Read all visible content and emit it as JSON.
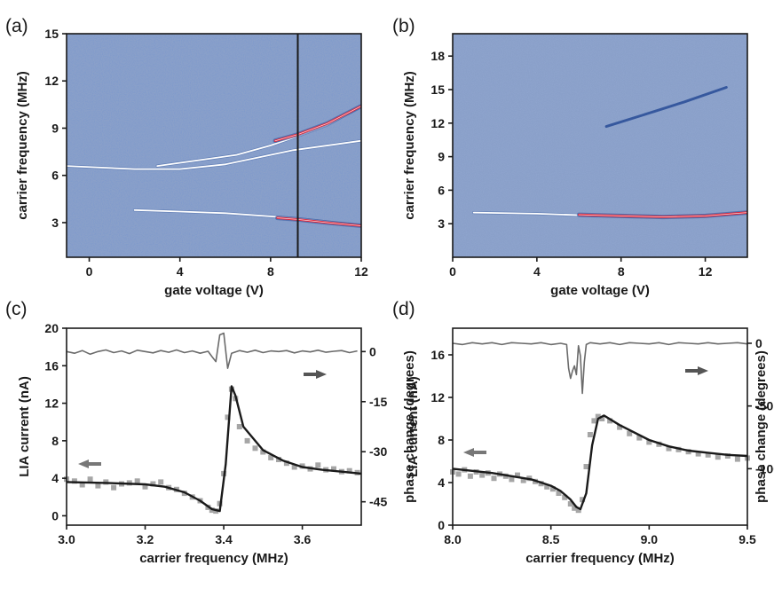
{
  "panels": {
    "a": {
      "letter": "(a)"
    },
    "b": {
      "letter": "(b)"
    },
    "c": {
      "letter": "(c)"
    },
    "d": {
      "letter": "(d)"
    }
  },
  "colors": {
    "map_background": "#8aa0c9",
    "map_dark": "#36589e",
    "map_light": "#ffffff",
    "map_red": "#e0263a",
    "data_points": "#a6a6a6",
    "fit_line": "#1a1a1a",
    "phase_line": "#6b6b6b"
  },
  "chart_data": [
    {
      "id": "a",
      "type": "heatmap",
      "xlabel": "gate voltage (V)",
      "ylabel": "carrier frequency (MHz)",
      "xlim": [
        -1,
        12
      ],
      "ylim": [
        0.8,
        15
      ],
      "xticks": [
        0,
        4,
        8,
        12
      ],
      "yticks": [
        3,
        6,
        9,
        12,
        15
      ],
      "colormap": "blue-white-red",
      "marker_line_x": 9.2,
      "features": [
        {
          "style": "light",
          "x": [
            -1,
            2,
            4,
            6,
            8,
            9,
            12
          ],
          "y": [
            6.6,
            6.4,
            6.4,
            6.7,
            7.3,
            7.6,
            8.2
          ]
        },
        {
          "style": "light",
          "x": [
            3,
            5,
            6.5,
            8,
            9.2,
            10.5,
            12
          ],
          "y": [
            6.6,
            7.0,
            7.3,
            7.9,
            8.5,
            9.2,
            10.4
          ]
        },
        {
          "style": "red",
          "x": [
            8.2,
            9.2,
            10.5,
            12
          ],
          "y": [
            8.2,
            8.6,
            9.3,
            10.4
          ]
        },
        {
          "style": "light",
          "x": [
            2,
            4,
            6,
            8,
            9.2,
            10.5,
            12
          ],
          "y": [
            3.8,
            3.7,
            3.6,
            3.4,
            3.25,
            3.05,
            2.8
          ]
        },
        {
          "style": "red",
          "x": [
            8.3,
            9.2,
            10.5,
            12
          ],
          "y": [
            3.3,
            3.2,
            3.0,
            2.8
          ]
        }
      ]
    },
    {
      "id": "b",
      "type": "heatmap",
      "xlabel": "gate voltage (V)",
      "ylabel": "carrier frequency (MHz)",
      "xlim": [
        0,
        14
      ],
      "ylim": [
        0,
        20
      ],
      "xticks": [
        0,
        4,
        8,
        12
      ],
      "yticks": [
        3,
        6,
        9,
        12,
        15,
        18
      ],
      "colormap": "blue-white-red",
      "features": [
        {
          "style": "light",
          "x": [
            1,
            4,
            7,
            10,
            12,
            14
          ],
          "y": [
            4.0,
            3.9,
            3.7,
            3.6,
            3.7,
            4.0
          ]
        },
        {
          "style": "red",
          "x": [
            6,
            8,
            10,
            12,
            14
          ],
          "y": [
            3.8,
            3.7,
            3.6,
            3.7,
            4.0
          ]
        },
        {
          "style": "dark",
          "x": [
            7.3,
            9,
            11,
            13
          ],
          "y": [
            11.7,
            12.7,
            13.9,
            15.2
          ]
        }
      ]
    },
    {
      "id": "c",
      "type": "scatter",
      "xlabel": "carrier frequency (MHz)",
      "ylabel": "LIA current (nA)",
      "ylabel_right": "phase change (degrees)",
      "xlim": [
        3.0,
        3.75
      ],
      "ylim": [
        -1,
        20
      ],
      "ylim_right": [
        -52,
        7
      ],
      "xticks": [
        3.0,
        3.2,
        3.4,
        3.6
      ],
      "yticks": [
        0,
        4,
        8,
        12,
        16,
        20
      ],
      "yticks_right": [
        0,
        -15,
        -30,
        -45
      ],
      "legend": "arrows: left = LIA current, right = phase change",
      "series": [
        {
          "kind": "points",
          "x": [
            3.0,
            3.02,
            3.04,
            3.06,
            3.08,
            3.1,
            3.12,
            3.14,
            3.16,
            3.18,
            3.2,
            3.22,
            3.24,
            3.26,
            3.28,
            3.3,
            3.32,
            3.34,
            3.36,
            3.37,
            3.38,
            3.39,
            3.4,
            3.41,
            3.42,
            3.43,
            3.44,
            3.46,
            3.48,
            3.5,
            3.52,
            3.54,
            3.56,
            3.58,
            3.6,
            3.62,
            3.64,
            3.66,
            3.68,
            3.7,
            3.72,
            3.74
          ],
          "y": [
            3.9,
            3.7,
            3.3,
            3.9,
            3.2,
            3.6,
            3.0,
            3.4,
            3.5,
            3.7,
            3.1,
            3.4,
            3.6,
            3.0,
            2.8,
            2.4,
            2.0,
            1.6,
            0.9,
            0.6,
            0.5,
            1.3,
            4.5,
            10.5,
            13.5,
            12.5,
            9.5,
            8.0,
            7.2,
            6.8,
            6.2,
            6.0,
            5.6,
            5.2,
            5.3,
            5.0,
            5.4,
            4.9,
            5.0,
            4.7,
            4.8,
            4.6
          ]
        },
        {
          "kind": "fit",
          "x": [
            3.0,
            3.1,
            3.2,
            3.25,
            3.3,
            3.34,
            3.37,
            3.39,
            3.405,
            3.42,
            3.43,
            3.45,
            3.5,
            3.55,
            3.6,
            3.65,
            3.7,
            3.75
          ],
          "y": [
            3.6,
            3.5,
            3.35,
            3.1,
            2.5,
            1.6,
            0.7,
            0.5,
            5.5,
            13.8,
            12.8,
            9.5,
            7.0,
            5.9,
            5.2,
            4.9,
            4.7,
            4.5
          ]
        },
        {
          "kind": "phase",
          "axis": "right",
          "x": [
            3.0,
            3.02,
            3.04,
            3.06,
            3.08,
            3.1,
            3.12,
            3.14,
            3.16,
            3.18,
            3.2,
            3.22,
            3.24,
            3.26,
            3.28,
            3.3,
            3.32,
            3.34,
            3.36,
            3.37,
            3.38,
            3.39,
            3.4,
            3.41,
            3.42,
            3.44,
            3.46,
            3.48,
            3.5,
            3.52,
            3.54,
            3.56,
            3.58,
            3.6,
            3.62,
            3.64,
            3.66,
            3.68,
            3.7,
            3.72,
            3.74
          ],
          "y": [
            0,
            -0.5,
            0.3,
            -0.8,
            0,
            0.5,
            -0.3,
            0.2,
            -0.6,
            0.4,
            0,
            -0.4,
            0.3,
            -0.2,
            0.5,
            -0.3,
            0.2,
            -0.5,
            0.1,
            -1.5,
            -3.0,
            5.0,
            5.5,
            -5.0,
            -0.5,
            0.3,
            -0.2,
            0.4,
            -0.3,
            0.2,
            0,
            0.3,
            -0.4,
            0.2,
            -0.1,
            0.4,
            -0.2,
            0.1,
            0.3,
            -0.3,
            0.2
          ]
        }
      ]
    },
    {
      "id": "d",
      "type": "scatter",
      "xlabel": "carrier frequency (MHz)",
      "ylabel": "LIA current (nA)",
      "ylabel_right": "phase change (degrees)",
      "xlim": [
        8.0,
        9.5
      ],
      "ylim": [
        0,
        18.5
      ],
      "ylim_right": [
        -145,
        12
      ],
      "xticks": [
        8.0,
        8.5,
        9.0,
        9.5
      ],
      "yticks": [
        0,
        4,
        8,
        12,
        16
      ],
      "yticks_right": [
        0,
        -50,
        -100
      ],
      "legend": "arrows: left = LIA current, right = phase change",
      "series": [
        {
          "kind": "points",
          "x": [
            8.0,
            8.03,
            8.06,
            8.09,
            8.12,
            8.15,
            8.18,
            8.21,
            8.24,
            8.27,
            8.3,
            8.33,
            8.36,
            8.39,
            8.42,
            8.45,
            8.48,
            8.51,
            8.54,
            8.57,
            8.6,
            8.62,
            8.64,
            8.66,
            8.68,
            8.7,
            8.72,
            8.74,
            8.76,
            8.8,
            8.85,
            8.9,
            8.95,
            9.0,
            9.05,
            9.1,
            9.15,
            9.2,
            9.25,
            9.3,
            9.35,
            9.4,
            9.45,
            9.5
          ],
          "y": [
            5.0,
            4.8,
            5.2,
            4.6,
            5.0,
            4.7,
            4.9,
            4.4,
            4.8,
            4.6,
            4.3,
            4.7,
            4.2,
            4.4,
            4.1,
            3.9,
            3.6,
            3.4,
            3.0,
            2.6,
            2.0,
            1.6,
            1.4,
            2.4,
            5.5,
            8.5,
            9.8,
            10.2,
            10.0,
            9.8,
            9.2,
            8.6,
            8.2,
            7.8,
            7.6,
            7.2,
            7.1,
            6.9,
            6.7,
            6.6,
            6.4,
            6.5,
            6.2,
            6.3
          ]
        },
        {
          "kind": "fit",
          "x": [
            8.0,
            8.1,
            8.2,
            8.3,
            8.4,
            8.5,
            8.55,
            8.6,
            8.63,
            8.65,
            8.68,
            8.71,
            8.74,
            8.77,
            8.85,
            9.0,
            9.1,
            9.2,
            9.3,
            9.4,
            9.5
          ],
          "y": [
            5.3,
            5.1,
            4.9,
            4.6,
            4.3,
            3.7,
            3.2,
            2.4,
            1.7,
            1.5,
            3.0,
            7.5,
            10.0,
            10.3,
            9.4,
            8.0,
            7.4,
            7.0,
            6.8,
            6.6,
            6.5
          ]
        },
        {
          "kind": "phase",
          "axis": "right",
          "x": [
            8.0,
            8.05,
            8.1,
            8.15,
            8.2,
            8.25,
            8.3,
            8.35,
            8.4,
            8.45,
            8.5,
            8.55,
            8.58,
            8.59,
            8.6,
            8.61,
            8.62,
            8.63,
            8.64,
            8.65,
            8.66,
            8.67,
            8.68,
            8.7,
            8.75,
            8.8,
            8.85,
            8.9,
            8.95,
            9.0,
            9.05,
            9.1,
            9.15,
            9.2,
            9.25,
            9.3,
            9.35,
            9.4,
            9.45,
            9.5
          ],
          "y": [
            0,
            -1,
            0.5,
            -0.5,
            0.5,
            -1,
            0.5,
            0,
            -0.5,
            0.5,
            -1,
            0,
            -1,
            -20,
            -28,
            -22,
            -18,
            -25,
            -2,
            -10,
            -40,
            -15,
            -1,
            0.5,
            -0.5,
            0.5,
            -1,
            0.5,
            0,
            -0.5,
            0.5,
            -1,
            0.5,
            0,
            -0.5,
            0.5,
            -0.5,
            0,
            0.5,
            -0.5
          ]
        }
      ]
    }
  ]
}
